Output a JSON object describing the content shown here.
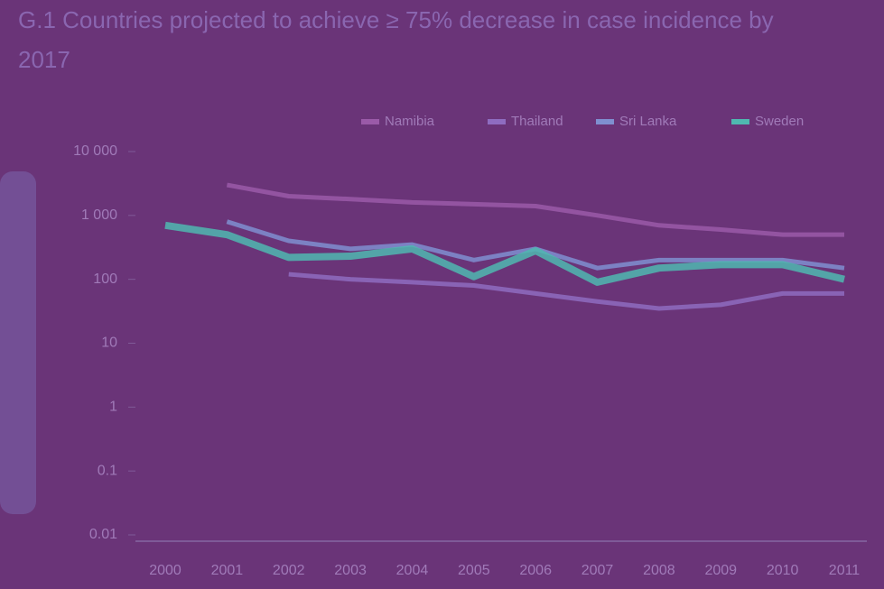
{
  "chart_data": {
    "type": "line",
    "title": "G.1 Countries projected to achieve ≥ 75% decrease in case incidence by 2017",
    "categories": [
      "2000",
      "2001",
      "2002",
      "2003",
      "2004",
      "2005",
      "2006",
      "2007",
      "2008",
      "2009",
      "2010",
      "2011"
    ],
    "series": [
      {
        "name": "Namibia",
        "color": "#9a5aa8",
        "values": [
          null,
          3000,
          2000,
          1800,
          1600,
          1500,
          1400,
          1000,
          700,
          600,
          500,
          500
        ]
      },
      {
        "name": "Thailand",
        "color": "#8e6cc0",
        "values": [
          null,
          null,
          120,
          100,
          90,
          80,
          60,
          45,
          35,
          40,
          60,
          60
        ]
      },
      {
        "name": "Sri Lanka",
        "color": "#7f8fd0",
        "values": [
          null,
          800,
          400,
          300,
          350,
          200,
          300,
          150,
          200,
          200,
          200,
          150
        ]
      },
      {
        "name": "Sweden",
        "color": "#4fb8b0",
        "values": [
          700,
          500,
          220,
          230,
          300,
          110,
          280,
          90,
          150,
          170,
          170,
          100
        ]
      }
    ],
    "ylim": [
      0.01,
      10000
    ],
    "log_scale": true,
    "yticks": [
      {
        "value": 10000,
        "label": "10 000"
      },
      {
        "value": 1000,
        "label": "1 000"
      },
      100,
      10,
      1,
      0.1,
      0.01
    ],
    "legend": "top-right"
  }
}
